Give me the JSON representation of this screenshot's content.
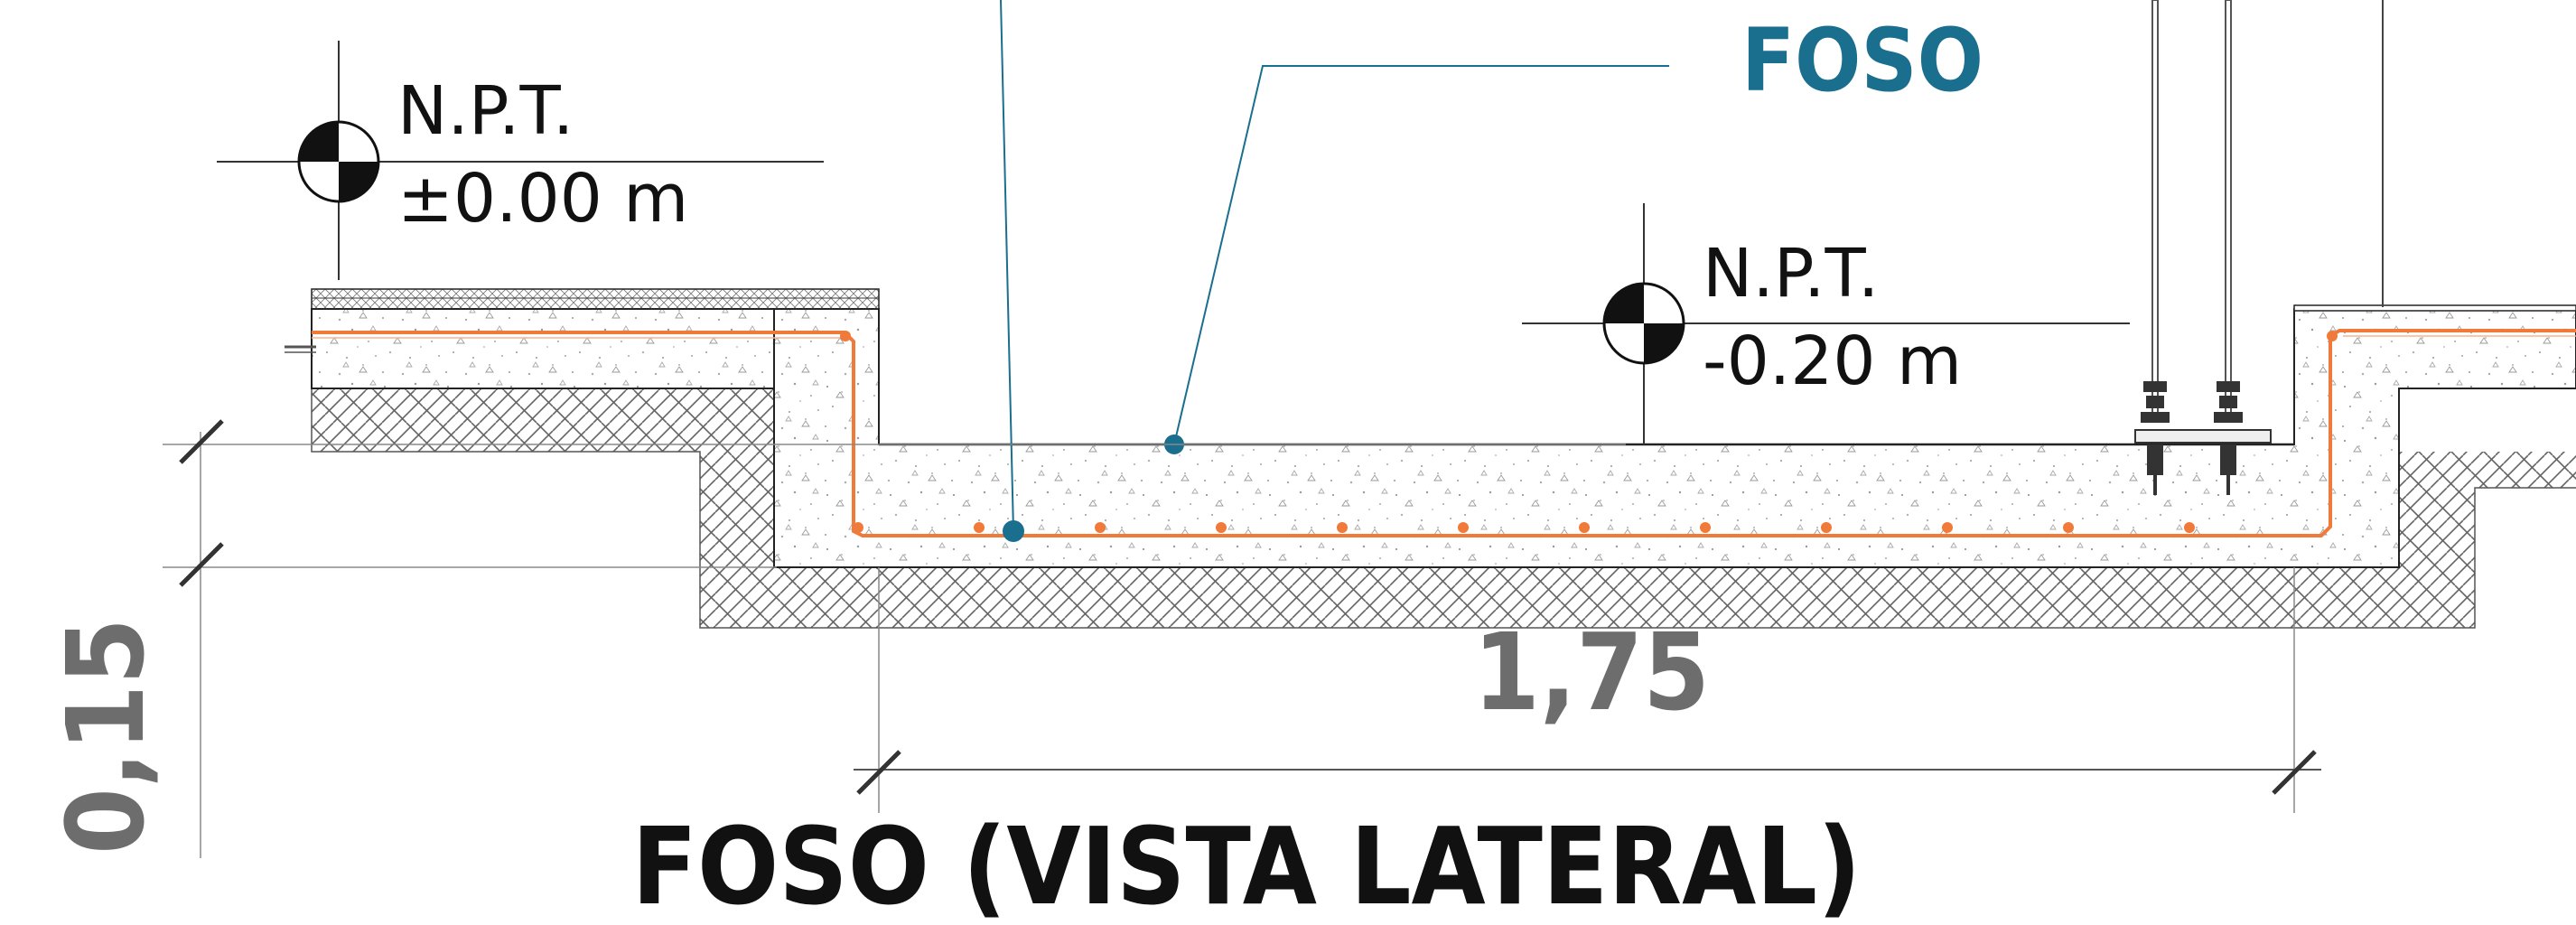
{
  "colors": {
    "callout": "#1a6e8e",
    "rebar": "#f07a3a",
    "dimension": "#6d6d6d",
    "title": "#111111",
    "concrete_speckle": "#9a9a9a"
  },
  "labels": {
    "foso_callout": "FOSO",
    "title": "FOSO (VISTA LATERAL)"
  },
  "levels": [
    {
      "name": "N.P.T.",
      "value": "±0.00 m"
    },
    {
      "name": "N.P.T.",
      "value": "-0.20 m"
    }
  ],
  "dimensions": {
    "width": "1,75",
    "depth": "0,15"
  },
  "icons": {
    "level_marker": "level-datum-icon",
    "anchor_bolt": "anchor-bolt-icon"
  }
}
